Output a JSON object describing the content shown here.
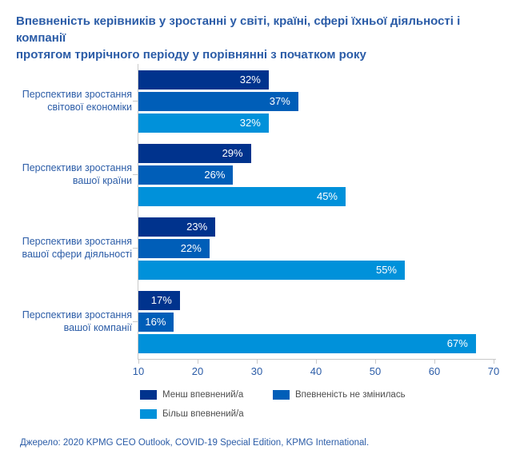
{
  "title": "Впевненість керівників у зростанні у світі, країні, сфері їхньої діяльності і компанії\nпротягом трирічного періоду у порівнянні з початком року",
  "source": "Джерело: 2020 KPMG CEO Outlook, COVID-19 Special Edition, KPMG International.",
  "colors": {
    "dark": "#00338D",
    "medium": "#005EB8",
    "light": "#0091DA",
    "text_blue": "#2B5CA7",
    "axis_gray": "#C9C9C9",
    "legend_text": "#4D4D4D"
  },
  "chart_data": {
    "type": "bar",
    "orientation": "horizontal",
    "title": "Впевненість керівників у зростанні у світі, країні, сфері їхньої діяльності і компанії протягом трирічного періоду у порівнянні з початком року",
    "categories": [
      "Перспективи зростання\nсвітової економіки",
      "Перспективи зростання\nвашої країни",
      "Перспективи зростання\nвашої сфери діяльності",
      "Перспективи зростання\nвашої компанії"
    ],
    "series": [
      {
        "name": "Менш впевнений/а",
        "color_key": "dark",
        "values": [
          32,
          29,
          23,
          17
        ]
      },
      {
        "name": "Впевненість не змінилась",
        "color_key": "medium",
        "values": [
          37,
          26,
          22,
          16
        ]
      },
      {
        "name": "Більш впевнений/а",
        "color_key": "light",
        "values": [
          32,
          45,
          55,
          67
        ]
      }
    ],
    "value_suffix": "%",
    "xlim": [
      10,
      70
    ],
    "ticks": [
      10,
      20,
      30,
      40,
      50,
      60,
      70
    ],
    "grid": false,
    "legend_position": "bottom"
  },
  "legend": {
    "items": [
      {
        "label": "Менш впевнений/а",
        "color_key": "dark"
      },
      {
        "label": "Впевненість не змінилась",
        "color_key": "medium"
      },
      {
        "label": "Більш впевнений/а",
        "color_key": "light"
      }
    ]
  }
}
